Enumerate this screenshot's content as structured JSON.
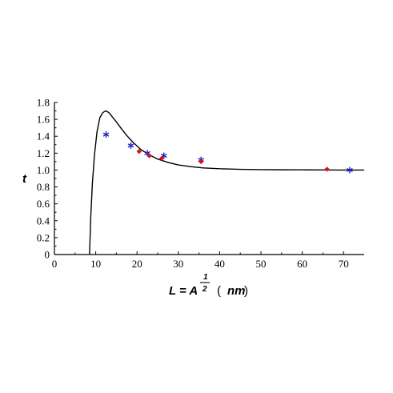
{
  "chart_data": {
    "type": "line",
    "ylabel": "t",
    "xlabel": {
      "prefix": "L = A",
      "exp_num": "1",
      "exp_den": "2",
      "unit_open": "(",
      "unit": "nm",
      "unit_close": ")"
    },
    "xlim": [
      0,
      75
    ],
    "ylim": [
      0,
      1.8
    ],
    "xticks": [
      0,
      10,
      20,
      30,
      40,
      50,
      60,
      70
    ],
    "yticks": [
      0,
      0.2,
      0.4,
      0.6,
      0.8,
      1.0,
      1.2,
      1.4,
      1.6,
      1.8
    ],
    "ytick_labels": [
      "0",
      "0.2",
      "0.4",
      "0.6",
      "0.8",
      "1.0",
      "1.2",
      "1.4",
      "1.6",
      "1.8"
    ],
    "grid": false,
    "curve_color": "#000000",
    "curve": {
      "x": [
        8.5,
        8.8,
        9.2,
        9.7,
        10.3,
        11.0,
        11.7,
        12.4,
        13.2,
        14.0,
        15.0,
        16.2,
        17.5,
        19.0,
        21.0,
        23.0,
        25.0,
        27.5,
        30.0,
        33.0,
        36.0,
        40.0,
        45.0,
        50.0,
        55.0,
        60.0,
        65.0,
        70.0,
        75.0
      ],
      "y": [
        0.0,
        0.45,
        0.85,
        1.18,
        1.45,
        1.62,
        1.68,
        1.7,
        1.68,
        1.63,
        1.57,
        1.49,
        1.41,
        1.33,
        1.24,
        1.18,
        1.13,
        1.09,
        1.06,
        1.04,
        1.025,
        1.015,
        1.008,
        1.005,
        1.003,
        1.002,
        1.001,
        1.0,
        1.0
      ]
    },
    "series": [
      {
        "marker": "star",
        "color": "#2222cc",
        "x": [
          12.5,
          18.5,
          22.5,
          26.5,
          35.5,
          71.5
        ],
        "y": [
          1.42,
          1.29,
          1.2,
          1.17,
          1.12,
          1.0
        ]
      },
      {
        "marker": "diamond",
        "color": "#dd1111",
        "x": [
          20.5,
          23.0,
          26.0,
          35.5,
          66.0
        ],
        "y": [
          1.22,
          1.17,
          1.14,
          1.1,
          1.01
        ]
      }
    ]
  }
}
